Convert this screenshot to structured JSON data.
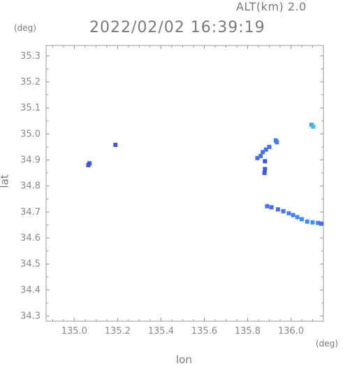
{
  "header": {
    "altitude": "ALT(km) 2.0",
    "datetime": "2022/02/02 16:39:19"
  },
  "chart_data": {
    "type": "scatter",
    "title": "2022/02/02 16:39:19",
    "xlabel": "lon",
    "ylabel": "lat",
    "x_unit": "(deg)",
    "y_unit": "(deg)",
    "xlim": [
      134.87,
      136.15
    ],
    "ylim": [
      34.28,
      35.34
    ],
    "x_ticks": [
      135.0,
      135.2,
      135.4,
      135.6,
      135.8,
      136.0
    ],
    "y_ticks": [
      34.3,
      34.4,
      34.5,
      34.6,
      34.7,
      34.8,
      34.9,
      35.0,
      35.1,
      35.2,
      35.3
    ],
    "x_tick_labels": [
      "135.0",
      "135.2",
      "135.4",
      "135.6",
      "135.8",
      "136.0"
    ],
    "y_tick_labels": [
      "34.3",
      "34.4",
      "34.5",
      "34.6",
      "34.7",
      "34.8",
      "34.9",
      "35.0",
      "35.1",
      "35.2",
      "35.3"
    ],
    "grid": false,
    "echoes": [
      {
        "lon": 135.065,
        "lat": 34.88,
        "color": "#3f55e8"
      },
      {
        "lon": 135.07,
        "lat": 34.887,
        "color": "#3f55e8"
      },
      {
        "lon": 135.19,
        "lat": 34.958,
        "color": "#3f55e8"
      },
      {
        "lon": 135.845,
        "lat": 34.907,
        "color": "#4a6ff0"
      },
      {
        "lon": 135.86,
        "lat": 34.915,
        "color": "#4a6ff0"
      },
      {
        "lon": 135.87,
        "lat": 34.93,
        "color": "#4a6ff0"
      },
      {
        "lon": 135.885,
        "lat": 34.94,
        "color": "#4a6ff0"
      },
      {
        "lon": 135.9,
        "lat": 34.95,
        "color": "#4a6ff0"
      },
      {
        "lon": 135.93,
        "lat": 34.975,
        "color": "#3f7ff5"
      },
      {
        "lon": 135.935,
        "lat": 34.968,
        "color": "#3f7ff5"
      },
      {
        "lon": 135.88,
        "lat": 34.895,
        "color": "#3f55e8"
      },
      {
        "lon": 135.88,
        "lat": 34.865,
        "color": "#3f55e8"
      },
      {
        "lon": 135.878,
        "lat": 34.85,
        "color": "#3f55e8"
      },
      {
        "lon": 136.095,
        "lat": 35.035,
        "color": "#3fa0f5"
      },
      {
        "lon": 136.103,
        "lat": 35.028,
        "color": "#3fc0f0"
      },
      {
        "lon": 135.89,
        "lat": 34.722,
        "color": "#4a6ff0"
      },
      {
        "lon": 135.91,
        "lat": 34.718,
        "color": "#4a6ff0"
      },
      {
        "lon": 135.94,
        "lat": 34.71,
        "color": "#4a6ff0"
      },
      {
        "lon": 135.965,
        "lat": 34.703,
        "color": "#4a6ff0"
      },
      {
        "lon": 135.99,
        "lat": 34.695,
        "color": "#4a7ff2"
      },
      {
        "lon": 136.01,
        "lat": 34.688,
        "color": "#4a7ff2"
      },
      {
        "lon": 136.03,
        "lat": 34.68,
        "color": "#4a8ff5"
      },
      {
        "lon": 136.05,
        "lat": 34.672,
        "color": "#3f8ff5"
      },
      {
        "lon": 136.075,
        "lat": 34.663,
        "color": "#3f90f5"
      },
      {
        "lon": 136.1,
        "lat": 34.66,
        "color": "#3f8ff5"
      },
      {
        "lon": 136.125,
        "lat": 34.658,
        "color": "#4a7ff2"
      },
      {
        "lon": 136.14,
        "lat": 34.655,
        "color": "#4a6ff0"
      }
    ]
  }
}
